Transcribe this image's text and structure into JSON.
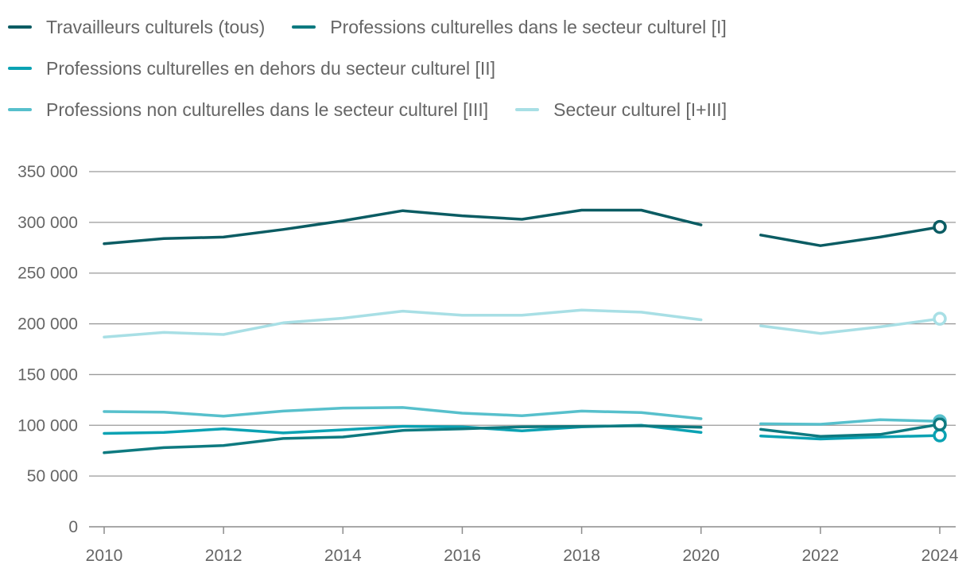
{
  "chart_data": {
    "type": "line",
    "title": "",
    "xlabel": "",
    "ylabel": "",
    "x": [
      2010,
      2011,
      2012,
      2013,
      2014,
      2015,
      2016,
      2017,
      2018,
      2019,
      2020,
      2021,
      2022,
      2023,
      2024
    ],
    "xlim": [
      2010,
      2024
    ],
    "ylim": [
      0,
      350000
    ],
    "x_ticks": [
      2010,
      2012,
      2014,
      2016,
      2018,
      2020,
      2022,
      2024
    ],
    "x_tick_labels": [
      "2010",
      "2012",
      "2014",
      "2016",
      "2018",
      "2020",
      "2022",
      "2024"
    ],
    "y_ticks": [
      0,
      50000,
      100000,
      150000,
      200000,
      250000,
      300000,
      350000
    ],
    "y_tick_labels": [
      "0",
      "50 000",
      "100 000",
      "150 000",
      "200 000",
      "250 000",
      "300 000",
      "350 000"
    ],
    "grid": "horizontal",
    "legend_position": "top-left",
    "gap_between": [
      2020,
      2021
    ],
    "series": [
      {
        "name": "Travailleurs culturels (tous)",
        "color": "#0b5c63",
        "values": [
          279000,
          284000,
          285500,
          293000,
          301500,
          311500,
          306500,
          303000,
          312000,
          312000,
          297500,
          287500,
          277000,
          285500,
          295500
        ]
      },
      {
        "name": "Professions culturelles dans le secteur culturel [I]",
        "color": "#0e7a80",
        "values": [
          73000,
          78000,
          80000,
          87000,
          88500,
          95000,
          96500,
          98500,
          99000,
          99500,
          98000,
          96000,
          89000,
          91000,
          101000
        ]
      },
      {
        "name": "Professions culturelles en dehors du secteur culturel [II]",
        "color": "#0ba2b3",
        "values": [
          92000,
          93000,
          96500,
          92500,
          95500,
          99000,
          98500,
          94500,
          98500,
          100000,
          93000,
          89500,
          86500,
          88500,
          90000
        ]
      },
      {
        "name": "Professions non culturelles dans le secteur culturel [III]",
        "color": "#57c0cc",
        "values": [
          113500,
          113000,
          109000,
          114000,
          117000,
          117500,
          112000,
          109500,
          114000,
          112500,
          106500,
          101500,
          101000,
          105500,
          104000
        ]
      },
      {
        "name": "Secteur culturel [I+III]",
        "color": "#a8dfe5",
        "values": [
          187000,
          191500,
          189500,
          201000,
          205500,
          212500,
          208500,
          208500,
          213500,
          211500,
          204000,
          198000,
          190500,
          197000,
          205000
        ]
      }
    ]
  }
}
